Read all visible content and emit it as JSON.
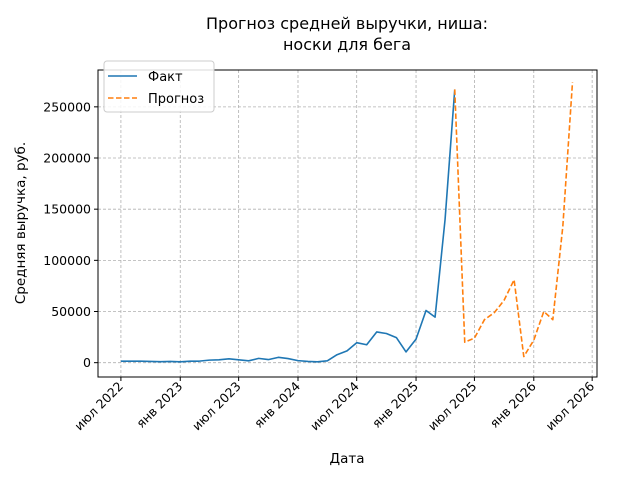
{
  "chart_data": {
    "type": "line",
    "title": [
      "Прогноз средней выручки, ниша:",
      "носки для бега"
    ],
    "xlabel": "Дата",
    "ylabel": "Средняя выручка, руб.",
    "x_ticks": [
      {
        "date": "2022-07-01",
        "label": "июл 2022"
      },
      {
        "date": "2023-01-01",
        "label": "янв 2023"
      },
      {
        "date": "2023-07-01",
        "label": "июл 2023"
      },
      {
        "date": "2024-01-01",
        "label": "янв 2024"
      },
      {
        "date": "2024-07-01",
        "label": "июл 2024"
      },
      {
        "date": "2025-01-01",
        "label": "янв 2025"
      },
      {
        "date": "2025-07-01",
        "label": "июл 2025"
      },
      {
        "date": "2026-01-01",
        "label": "янв 2026"
      },
      {
        "date": "2026-07-01",
        "label": "июл 2026"
      }
    ],
    "y_ticks": [
      {
        "value": 0,
        "label": "0"
      },
      {
        "value": 50000,
        "label": "50000"
      },
      {
        "value": 100000,
        "label": "100000"
      },
      {
        "value": 150000,
        "label": "150000"
      },
      {
        "value": 200000,
        "label": "200000"
      },
      {
        "value": 250000,
        "label": "250000"
      }
    ],
    "xlim": [
      "2022-04-21",
      "2026-07-16"
    ],
    "ylim": [
      -14000,
      286000
    ],
    "grid": true,
    "legend_position": "top-left",
    "series": [
      {
        "name": "Факт",
        "color": "#1f77b4",
        "style": "solid",
        "points": [
          {
            "x": "2022-07-01",
            "y": 1500
          },
          {
            "x": "2022-08-01",
            "y": 1500
          },
          {
            "x": "2022-09-01",
            "y": 1500
          },
          {
            "x": "2022-10-01",
            "y": 1200
          },
          {
            "x": "2022-11-01",
            "y": 1000
          },
          {
            "x": "2022-12-01",
            "y": 1200
          },
          {
            "x": "2023-01-01",
            "y": 800
          },
          {
            "x": "2023-02-01",
            "y": 1500
          },
          {
            "x": "2023-03-01",
            "y": 1500
          },
          {
            "x": "2023-04-01",
            "y": 2500
          },
          {
            "x": "2023-05-01",
            "y": 2800
          },
          {
            "x": "2023-06-01",
            "y": 3800
          },
          {
            "x": "2023-07-01",
            "y": 2800
          },
          {
            "x": "2023-08-01",
            "y": 1800
          },
          {
            "x": "2023-09-01",
            "y": 4200
          },
          {
            "x": "2023-10-01",
            "y": 3000
          },
          {
            "x": "2023-11-01",
            "y": 5200
          },
          {
            "x": "2023-12-01",
            "y": 4000
          },
          {
            "x": "2024-01-01",
            "y": 2000
          },
          {
            "x": "2024-02-01",
            "y": 1200
          },
          {
            "x": "2024-03-01",
            "y": 800
          },
          {
            "x": "2024-04-01",
            "y": 1800
          },
          {
            "x": "2024-05-01",
            "y": 7800
          },
          {
            "x": "2024-06-01",
            "y": 11500
          },
          {
            "x": "2024-07-01",
            "y": 19500
          },
          {
            "x": "2024-08-01",
            "y": 17500
          },
          {
            "x": "2024-09-01",
            "y": 30000
          },
          {
            "x": "2024-10-01",
            "y": 28500
          },
          {
            "x": "2024-11-01",
            "y": 24500
          },
          {
            "x": "2024-12-01",
            "y": 10500
          },
          {
            "x": "2025-01-01",
            "y": 23000
          },
          {
            "x": "2025-02-01",
            "y": 51000
          },
          {
            "x": "2025-03-01",
            "y": 44500
          },
          {
            "x": "2025-04-01",
            "y": 140000
          },
          {
            "x": "2025-05-01",
            "y": 267000
          }
        ]
      },
      {
        "name": "Прогноз",
        "color": "#ff7f0e",
        "style": "dashed",
        "points": [
          {
            "x": "2025-05-01",
            "y": 267000
          },
          {
            "x": "2025-06-01",
            "y": 20000
          },
          {
            "x": "2025-07-01",
            "y": 24000
          },
          {
            "x": "2025-08-01",
            "y": 42000
          },
          {
            "x": "2025-09-01",
            "y": 49000
          },
          {
            "x": "2025-10-01",
            "y": 61000
          },
          {
            "x": "2025-11-01",
            "y": 81000
          },
          {
            "x": "2025-12-01",
            "y": 6000
          },
          {
            "x": "2026-01-01",
            "y": 22000
          },
          {
            "x": "2026-02-01",
            "y": 50000
          },
          {
            "x": "2026-03-01",
            "y": 42000
          },
          {
            "x": "2026-04-01",
            "y": 133000
          },
          {
            "x": "2026-05-01",
            "y": 274000
          }
        ]
      }
    ]
  }
}
